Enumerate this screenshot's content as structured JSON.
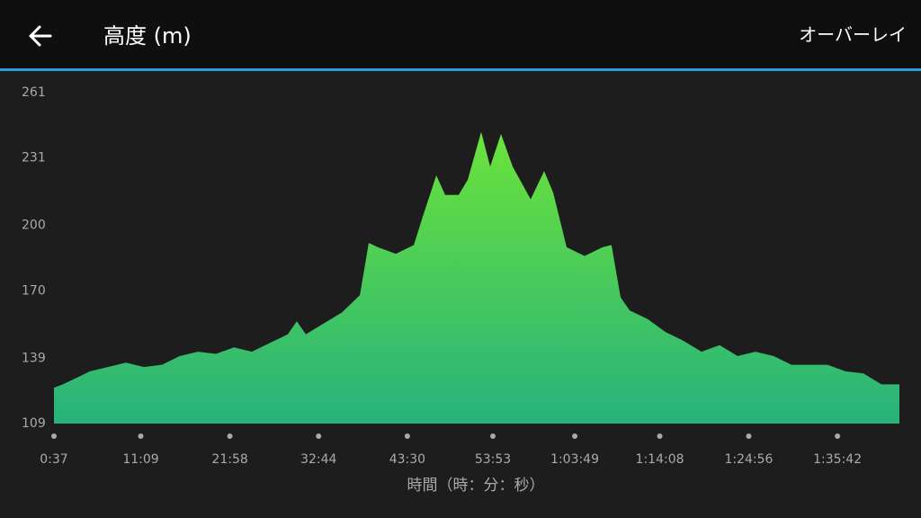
{
  "header": {
    "title": "高度 (m)",
    "action": "オーバーレイ"
  },
  "chart_data": {
    "type": "area",
    "x_label": "時間（時：分：秒）",
    "x": [
      37,
      102,
      168,
      299,
      430,
      561,
      692,
      823,
      954,
      1085,
      1216,
      1347,
      1478,
      1609,
      1740,
      1805,
      1871,
      2002,
      2133,
      2264,
      2329,
      2395,
      2526,
      2657,
      2722,
      2821,
      2886,
      2984,
      3050,
      3148,
      3213,
      3292,
      3377,
      3508,
      3606,
      3672,
      3770,
      3901,
      4032,
      4097,
      4163,
      4228,
      4359,
      4490,
      4621,
      4752,
      4883,
      5014,
      5145,
      5276,
      5407,
      5538,
      5669,
      5800,
      5931,
      6062,
      6193
    ],
    "values": [
      125.5,
      127,
      129,
      133,
      135,
      137,
      135,
      136,
      140,
      142,
      141,
      144,
      142,
      146,
      150,
      156,
      150,
      155,
      160,
      168,
      192,
      190,
      187,
      191,
      204,
      223,
      214,
      214,
      221,
      243,
      227,
      242,
      227,
      212,
      225,
      215,
      190,
      186,
      190,
      191,
      167,
      161,
      157,
      151,
      147,
      142,
      145,
      140,
      142,
      140,
      136,
      136,
      136,
      133,
      132,
      127,
      127
    ],
    "color_top": "#6be33a",
    "color_bottom": "#27b27c",
    "xlim": [
      37,
      6193
    ],
    "xticks": [
      {
        "value": 37,
        "label": "0:37"
      },
      {
        "value": 669,
        "label": "11:09"
      },
      {
        "value": 1318,
        "label": "21:58"
      },
      {
        "value": 1964,
        "label": "32:44"
      },
      {
        "value": 2610,
        "label": "43:30"
      },
      {
        "value": 3233,
        "label": "53:53"
      },
      {
        "value": 3829,
        "label": "1:03:49"
      },
      {
        "value": 4448,
        "label": "1:14:08"
      },
      {
        "value": 5096,
        "label": "1:24:56"
      },
      {
        "value": 5742,
        "label": "1:35:42"
      }
    ],
    "ylim": [
      109,
      261
    ],
    "yticks": [
      109,
      139,
      170,
      200,
      231,
      261
    ]
  }
}
